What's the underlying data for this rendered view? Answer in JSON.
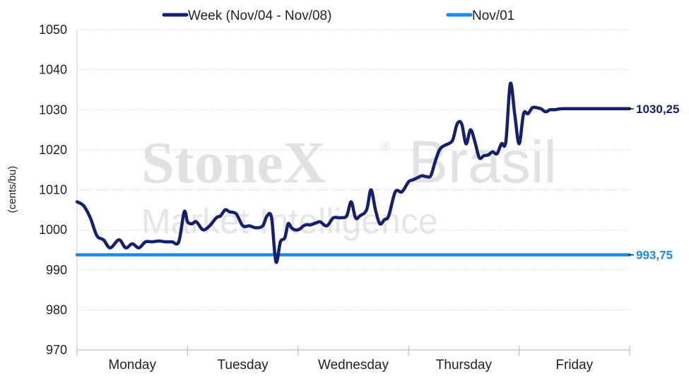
{
  "chart_data": {
    "type": "line",
    "title": "",
    "xlabel": "",
    "ylabel": "(cents/bu)",
    "ylim": [
      970,
      1050
    ],
    "yticks": [
      970,
      980,
      990,
      1000,
      1010,
      1020,
      1030,
      1040,
      1050
    ],
    "categories": [
      "Monday",
      "Tuesday",
      "Wednesday",
      "Thursday",
      "Friday"
    ],
    "grid": true,
    "legend": "top",
    "series": [
      {
        "name": "Week (Nov/04 - Nov/08)",
        "color": "#14206e",
        "end_label": "1030,25",
        "x": [
          0.0,
          0.06,
          0.12,
          0.18,
          0.24,
          0.3,
          0.38,
          0.44,
          0.5,
          0.56,
          0.62,
          0.68,
          0.74,
          0.8,
          0.86,
          0.92,
          0.97,
          1.0,
          1.04,
          1.08,
          1.14,
          1.2,
          1.26,
          1.3,
          1.34,
          1.38,
          1.44,
          1.5,
          1.56,
          1.62,
          1.68,
          1.72,
          1.76,
          1.8,
          1.84,
          1.88,
          1.91,
          1.94,
          1.97,
          2.0,
          2.02,
          2.05,
          2.08,
          2.11,
          2.14,
          2.17,
          2.2,
          2.26,
          2.32,
          2.38,
          2.44,
          2.48,
          2.52,
          2.56,
          2.62,
          2.66,
          2.7,
          2.74,
          2.78,
          2.82,
          2.88,
          2.94,
          3.0,
          3.04,
          3.08,
          3.12,
          3.16,
          3.2,
          3.24,
          3.28,
          3.32,
          3.36,
          3.4,
          3.44,
          3.48,
          3.52,
          3.56,
          3.6,
          3.64,
          3.68,
          3.72,
          3.76,
          3.8,
          3.84,
          3.88,
          3.92,
          3.96,
          4.0,
          4.04,
          4.08,
          4.12,
          4.16,
          4.2,
          4.24,
          4.28,
          4.32,
          4.36,
          4.4,
          4.44,
          4.48,
          4.52,
          4.56,
          4.6,
          4.64,
          4.68,
          4.72,
          4.76,
          4.8,
          4.84,
          4.88,
          4.92,
          4.96,
          5.0
        ],
        "values": [
          1007,
          1006,
          1003,
          998.5,
          997.5,
          995.5,
          997.5,
          995.5,
          996.5,
          995.5,
          997,
          997,
          997.2,
          997,
          997,
          997,
          1004.5,
          1002,
          1001.5,
          1002,
          1000,
          1001,
          1003,
          1003.5,
          1005,
          1004.5,
          1004,
          1001,
          1001,
          1000.5,
          1001,
          1003.5,
          1003,
          992,
          997,
          998,
          1001.5,
          1000.5,
          1000,
          1000,
          1000.3,
          1001,
          1001.3,
          1001.2,
          1001.5,
          1001.8,
          1002,
          1001,
          1003,
          1003,
          1003.5,
          1007,
          1003,
          1003.5,
          1005,
          1010,
          1005,
          1001.5,
          1002.5,
          1003.5,
          1009.5,
          1009.5,
          1012,
          1012.5,
          1013,
          1013.5,
          1013.3,
          1013.5,
          1017,
          1020,
          1021,
          1021.5,
          1022.5,
          1026.5,
          1026.5,
          1021.5,
          1025,
          1022,
          1018,
          1018.5,
          1018.7,
          1019.5,
          1019,
          1021.5,
          1022,
          1036.5,
          1029,
          1021.5,
          1029,
          1029,
          1030.5,
          1030.5,
          1030.2,
          1029.5,
          1030,
          1030,
          1030.2,
          1030.25,
          1030.25,
          1030.25,
          1030.25,
          1030.25,
          1030.25,
          1030.25,
          1030.25,
          1030.25,
          1030.25,
          1030.25,
          1030.25,
          1030.25,
          1030.25,
          1030.25,
          1030.25
        ]
      },
      {
        "name": "Nov/01",
        "color": "#1e88e5",
        "end_label": "993,75",
        "x": [
          0,
          5
        ],
        "values": [
          993.75,
          993.75
        ]
      }
    ]
  },
  "watermark": {
    "brand_bold": "StoneX",
    "brand_light": "Brasil",
    "registered": "®",
    "sub": "Market Intelligence"
  }
}
